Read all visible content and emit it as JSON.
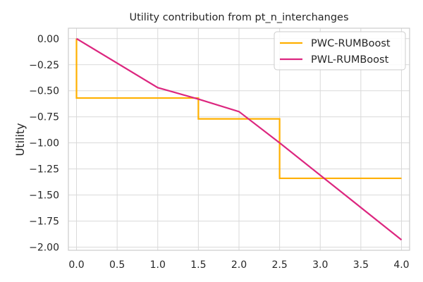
{
  "chart_data": {
    "type": "line",
    "title": "Utility contribution from pt_n_interchanges",
    "xlabel": "",
    "ylabel": "Utility",
    "xlim": [
      -0.1,
      4.1
    ],
    "ylim": [
      -2.03,
      0.1
    ],
    "xticks": [
      0.0,
      0.5,
      1.0,
      1.5,
      2.0,
      2.5,
      3.0,
      3.5,
      4.0
    ],
    "xtick_labels": [
      "0.0",
      "0.5",
      "1.0",
      "1.5",
      "2.0",
      "2.5",
      "3.0",
      "3.5",
      "4.0"
    ],
    "yticks": [
      0.0,
      -0.25,
      -0.5,
      -0.75,
      -1.0,
      -1.25,
      -1.5,
      -1.75,
      -2.0
    ],
    "ytick_labels": [
      "0.00",
      "−0.25",
      "−0.50",
      "−0.75",
      "−1.00",
      "−1.25",
      "−1.50",
      "−1.75",
      "−2.00"
    ],
    "grid": true,
    "legend_position": "top-right",
    "series": [
      {
        "name": "PWC-RUMBoost",
        "color": "#ffb000",
        "x": [
          0.0,
          0.0,
          1.5,
          1.5,
          2.5,
          2.5,
          4.0
        ],
        "y": [
          0.0,
          -0.57,
          -0.57,
          -0.77,
          -0.77,
          -1.34,
          -1.34
        ]
      },
      {
        "name": "PWL-RUMBoost",
        "color": "#dc267f",
        "x": [
          0.0,
          1.0,
          1.5,
          2.0,
          2.5,
          4.0
        ],
        "y": [
          0.0,
          -0.47,
          -0.58,
          -0.7,
          -1.0,
          -1.93
        ]
      }
    ]
  }
}
